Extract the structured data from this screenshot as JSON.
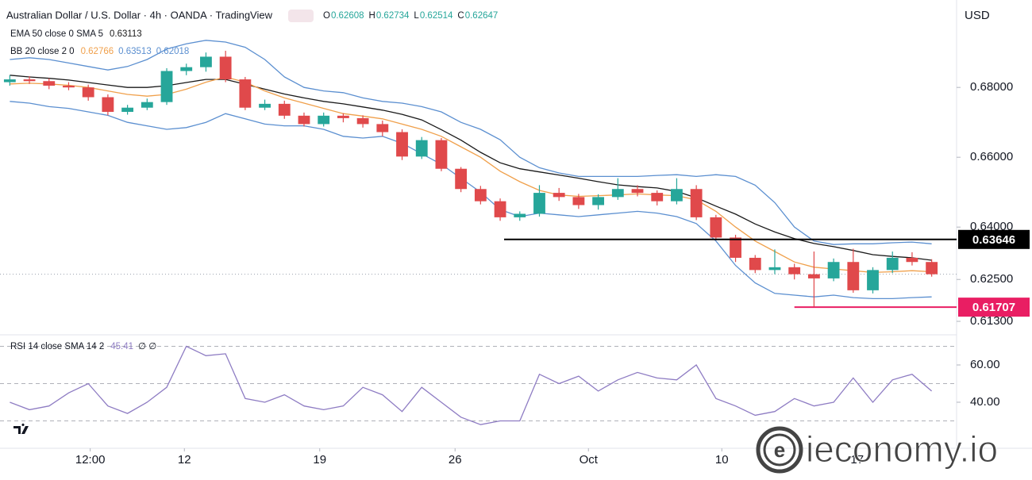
{
  "chart_data": {
    "type": "candlestick",
    "title": "Australian Dollar / U.S. Dollar · 4h · OANDA · TradingView",
    "currency": "USD",
    "ohlc_legend": [
      {
        "label": "O",
        "value": 0.62608
      },
      {
        "label": "H",
        "value": 0.62734
      },
      {
        "label": "L",
        "value": 0.62514
      },
      {
        "label": "C",
        "value": 0.62647
      }
    ],
    "indicators": [
      {
        "name": "EMA 50 close 0 SMA 5",
        "values": [
          0.63113
        ]
      },
      {
        "name": "BB 20 close 2 0",
        "values": [
          0.62766,
          0.63513,
          0.62018
        ]
      }
    ],
    "up_color": "#26a69a",
    "down_color": "#e0494b",
    "candles": {
      "open": [
        0.6815,
        0.6823,
        0.6818,
        0.6805,
        0.68,
        0.6772,
        0.673,
        0.6742,
        0.6758,
        0.6847,
        0.6858,
        0.6888,
        0.6823,
        0.6742,
        0.6753,
        0.6719,
        0.6695,
        0.6719,
        0.6712,
        0.6695,
        0.6672,
        0.6602,
        0.6649,
        0.6567,
        0.6509,
        0.6474,
        0.6428,
        0.6438,
        0.6498,
        0.6486,
        0.6463,
        0.6486,
        0.6509,
        0.6498,
        0.6474,
        0.6509,
        0.6428,
        0.637,
        0.6312,
        0.6277,
        0.6285,
        0.6265,
        0.6253,
        0.63,
        0.6219,
        0.6277,
        0.6312,
        0.63
      ],
      "high": [
        0.6835,
        0.6832,
        0.6826,
        0.6815,
        0.6808,
        0.678,
        0.675,
        0.6768,
        0.6855,
        0.6868,
        0.69,
        0.6905,
        0.683,
        0.6765,
        0.6762,
        0.6728,
        0.6728,
        0.6726,
        0.672,
        0.6705,
        0.668,
        0.6658,
        0.6655,
        0.6572,
        0.6518,
        0.6482,
        0.6445,
        0.652,
        0.6512,
        0.6495,
        0.6494,
        0.654,
        0.652,
        0.6505,
        0.654,
        0.652,
        0.6435,
        0.6378,
        0.632,
        0.6336,
        0.6295,
        0.633,
        0.631,
        0.6338,
        0.6285,
        0.633,
        0.6328,
        0.6308
      ],
      "low": [
        0.6805,
        0.681,
        0.6795,
        0.6792,
        0.6762,
        0.672,
        0.6722,
        0.6735,
        0.675,
        0.6835,
        0.6845,
        0.6815,
        0.6735,
        0.6735,
        0.671,
        0.6688,
        0.6688,
        0.67,
        0.6685,
        0.666,
        0.6592,
        0.6595,
        0.656,
        0.65,
        0.6465,
        0.6418,
        0.6418,
        0.643,
        0.6475,
        0.6452,
        0.645,
        0.6478,
        0.6488,
        0.6462,
        0.6465,
        0.642,
        0.6362,
        0.63,
        0.6268,
        0.6265,
        0.625,
        0.6171,
        0.6245,
        0.6212,
        0.621,
        0.6268,
        0.629,
        0.6258
      ],
      "close": [
        0.6823,
        0.6818,
        0.6805,
        0.68,
        0.6772,
        0.673,
        0.6742,
        0.6758,
        0.6847,
        0.6858,
        0.6888,
        0.6823,
        0.6742,
        0.6753,
        0.6719,
        0.6695,
        0.6719,
        0.6712,
        0.6695,
        0.6672,
        0.6602,
        0.6649,
        0.6567,
        0.6509,
        0.6474,
        0.6428,
        0.6438,
        0.6498,
        0.6486,
        0.6463,
        0.6486,
        0.6509,
        0.6498,
        0.6474,
        0.6509,
        0.6428,
        0.637,
        0.6312,
        0.6277,
        0.6285,
        0.6265,
        0.6253,
        0.63,
        0.6219,
        0.6277,
        0.6312,
        0.63,
        0.6265
      ]
    },
    "overlays": [
      {
        "color": "#1a1a1a",
        "values": [
          0.6835,
          0.683,
          0.6826,
          0.6821,
          0.6814,
          0.6807,
          0.68,
          0.68,
          0.6805,
          0.6814,
          0.6823,
          0.6823,
          0.6809,
          0.6795,
          0.6781,
          0.677,
          0.676,
          0.6753,
          0.6744,
          0.6735,
          0.6723,
          0.6707,
          0.6679,
          0.6649,
          0.6614,
          0.6584,
          0.6567,
          0.6558,
          0.6549,
          0.654,
          0.653,
          0.6521,
          0.6516,
          0.6512,
          0.6502,
          0.6484,
          0.646,
          0.6437,
          0.6409,
          0.6386,
          0.6367,
          0.6353,
          0.6344,
          0.6333,
          0.6321,
          0.6316,
          0.6312,
          0.6305
        ]
      },
      {
        "color": "#f0a04b",
        "values": [
          0.681,
          0.6812,
          0.681,
          0.6806,
          0.68,
          0.679,
          0.678,
          0.6775,
          0.678,
          0.6795,
          0.6815,
          0.683,
          0.6815,
          0.679,
          0.677,
          0.6755,
          0.674,
          0.6725,
          0.6718,
          0.671,
          0.6695,
          0.668,
          0.666,
          0.663,
          0.66,
          0.656,
          0.653,
          0.6505,
          0.6492,
          0.6488,
          0.649,
          0.6492,
          0.6495,
          0.6492,
          0.649,
          0.6478,
          0.6445,
          0.64,
          0.636,
          0.633,
          0.63,
          0.6285,
          0.628,
          0.6275,
          0.627,
          0.6272,
          0.6275,
          0.6272
        ]
      },
      {
        "color": "#5b8fd0",
        "values": [
          0.688,
          0.6885,
          0.688,
          0.687,
          0.686,
          0.685,
          0.686,
          0.688,
          0.691,
          0.6925,
          0.6935,
          0.693,
          0.6915,
          0.688,
          0.683,
          0.68,
          0.679,
          0.6785,
          0.677,
          0.676,
          0.6755,
          0.6745,
          0.673,
          0.67,
          0.668,
          0.665,
          0.66,
          0.657,
          0.6555,
          0.6545,
          0.6545,
          0.6545,
          0.6545,
          0.6548,
          0.655,
          0.6545,
          0.655,
          0.6545,
          0.652,
          0.647,
          0.64,
          0.636,
          0.635,
          0.6352,
          0.6352,
          0.6355,
          0.6357,
          0.6352
        ]
      },
      {
        "color": "#5b8fd0",
        "values": [
          0.676,
          0.6755,
          0.6745,
          0.674,
          0.673,
          0.672,
          0.67,
          0.669,
          0.668,
          0.6685,
          0.67,
          0.6725,
          0.671,
          0.6695,
          0.669,
          0.669,
          0.668,
          0.666,
          0.6655,
          0.666,
          0.664,
          0.661,
          0.658,
          0.654,
          0.65,
          0.645,
          0.643,
          0.644,
          0.6435,
          0.643,
          0.6435,
          0.644,
          0.6445,
          0.644,
          0.643,
          0.641,
          0.636,
          0.629,
          0.624,
          0.621,
          0.6205,
          0.62,
          0.6205,
          0.6198,
          0.6195,
          0.6195,
          0.6198,
          0.62
        ]
      }
    ],
    "xlim": [
      -0.5,
      47.5
    ],
    "xticks": [
      {
        "value": 4.1,
        "label": "12:00"
      },
      {
        "value": 8.9,
        "label": "12"
      },
      {
        "value": 15.8,
        "label": "19"
      },
      {
        "value": 22.7,
        "label": "26"
      },
      {
        "value": 29.5,
        "label": "Oct"
      },
      {
        "value": 36.3,
        "label": "10"
      },
      {
        "value": 43.2,
        "label": "17"
      }
    ],
    "ylim": [
      0.6096,
      0.7039
    ],
    "yticks": [
      {
        "value": 0.68,
        "label": "0.68000"
      },
      {
        "value": 0.66,
        "label": "0.66000"
      },
      {
        "value": 0.64,
        "label": "0.64000"
      },
      {
        "value": 0.625,
        "label": "0.62500"
      },
      {
        "value": 0.613,
        "label": "0.61300"
      }
    ],
    "levels": [
      {
        "value": 0.63646,
        "label": "0.63646",
        "color": "#000000",
        "from": 25.2
      },
      {
        "value": 0.61707,
        "label": "0.61707",
        "color": "#e91e63",
        "from": 40
      }
    ],
    "rsi": {
      "name": "RSI 14 close SMA 14 2",
      "value": 45.41,
      "extra": "∅ ∅",
      "color": "#8e7cc3",
      "values": [
        40,
        36,
        38,
        45,
        50,
        38,
        34,
        40,
        48,
        70,
        65,
        66,
        42,
        40,
        44,
        38,
        36,
        38,
        48,
        44,
        35,
        48,
        40,
        32,
        28,
        30,
        30,
        55,
        50,
        54,
        46,
        52,
        56,
        53,
        52,
        60,
        42,
        38,
        33,
        35,
        42,
        38,
        40,
        53,
        40,
        52,
        55,
        46
      ],
      "ylim": [
        15.3,
        74.9
      ],
      "yticks": [
        {
          "value": 60,
          "label": "60.00"
        },
        {
          "value": 40,
          "label": "40.00"
        }
      ],
      "bands": [
        70,
        50,
        30
      ]
    },
    "watermark": "ieconomy.io"
  }
}
